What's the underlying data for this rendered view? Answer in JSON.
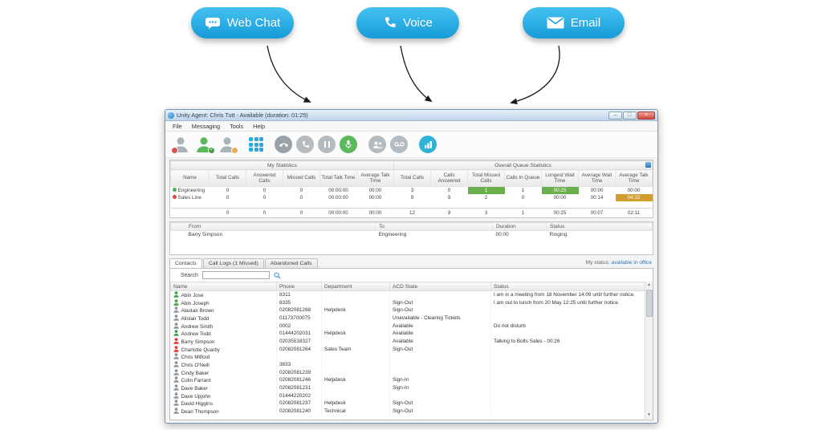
{
  "channels": {
    "webchat": {
      "label": "Web Chat"
    },
    "voice": {
      "label": "Voice"
    },
    "email": {
      "label": "Email"
    },
    "pill_color": "#29abe2"
  },
  "window": {
    "title": "Unity Agent: Chris Tutt - Available (duration: 01:25)",
    "controls": {
      "minimize": "–",
      "maximize": "□",
      "close": "×"
    },
    "menu": [
      "File",
      "Messaging",
      "Tools",
      "Help"
    ],
    "toolbar": {
      "icons": [
        {
          "name": "agent-unavailable-icon",
          "kind": "avatar",
          "color": "#a9b3ba",
          "badge": "#d9534f",
          "badge_glyph": "",
          "badge_side": "left"
        },
        {
          "name": "agent-available-icon",
          "kind": "avatar",
          "color": "#5cb85c",
          "badge": "#43a047",
          "badge_glyph": "✓",
          "badge_side": "right"
        },
        {
          "name": "agent-wrapup-icon",
          "kind": "avatar",
          "color": "#a9b3ba",
          "badge": "#f0ad4e",
          "badge_glyph": "",
          "badge_side": "right"
        },
        {
          "name": "dialpad-icon",
          "kind": "dialpad",
          "color": "#2aa9e0",
          "gap": true
        },
        {
          "name": "end-call-icon",
          "kind": "circle",
          "color": "#9aa2a9",
          "glyph": "phone-down",
          "gap": true
        },
        {
          "name": "answer-call-icon",
          "kind": "circle",
          "color": "#b4bbc1",
          "glyph": "phone"
        },
        {
          "name": "hold-call-icon",
          "kind": "circle",
          "color": "#b4bbc1",
          "glyph": "pause"
        },
        {
          "name": "record-call-icon",
          "kind": "circle",
          "color": "#5cb85c",
          "glyph": "mic"
        },
        {
          "name": "conference-icon",
          "kind": "circle",
          "color": "#b4bbc1",
          "glyph": "people",
          "gap": true
        },
        {
          "name": "voicemail-icon",
          "kind": "circle",
          "color": "#b4bbc1",
          "glyph": "voicemail"
        },
        {
          "name": "reports-icon",
          "kind": "circle",
          "color": "#2fb4d8",
          "glyph": "chart",
          "gap": true
        }
      ]
    },
    "stats": {
      "groups": [
        "My Statistics",
        "Overall Queue Statistics"
      ],
      "columns": [
        "Name",
        "Total Calls",
        "Answered Calls",
        "Missed Calls",
        "Total Talk Time",
        "Average Talk Time",
        "Total Calls",
        "Calls Answered",
        "Total Missed Calls",
        "Calls In Queue",
        "Longest Wait Time",
        "Average Wait Time",
        "Average Talk Time"
      ],
      "highlight_colors": {
        "green": "#6aaf4b",
        "amber": "#cf9e2e"
      },
      "rows": [
        {
          "name": "Engineering",
          "dot": "#4caf50",
          "values": [
            "0",
            "0",
            "0",
            "00:00:00",
            "00:00",
            "3",
            "0",
            "1",
            "1",
            "00:25",
            "00:00",
            "00:00"
          ],
          "highlights": {
            "7": "green",
            "9": "green"
          }
        },
        {
          "name": "Sales Line",
          "dot": "#e04438",
          "values": [
            "0",
            "0",
            "0",
            "00:00:00",
            "00:00",
            "9",
            "9",
            "2",
            "0",
            "00:00",
            "00:14",
            "04:22"
          ],
          "highlights": {
            "11": "amber"
          }
        }
      ],
      "totals": [
        "",
        "0",
        "0",
        "0",
        "00:00:00",
        "00:00",
        "12",
        "9",
        "3",
        "1",
        "00:25",
        "00:07",
        "02:11"
      ]
    },
    "calls": {
      "columns": [
        "From",
        "To",
        "Duration",
        "Status"
      ],
      "rows": [
        {
          "from": "Barry Simpson",
          "to": "Engineering",
          "duration": "00:00",
          "status": "Ringing"
        }
      ]
    },
    "tabs": [
      {
        "label": "Contacts",
        "active": true
      },
      {
        "label": "Call Logs (1 Missed)",
        "active": false
      },
      {
        "label": "Abandoned Calls",
        "active": false
      }
    ],
    "status_note": {
      "prefix": "My status: ",
      "value": "available in office"
    },
    "search": {
      "label": "Search",
      "value": ""
    },
    "contacts": {
      "columns": [
        "Name",
        "Phone",
        "Department",
        "ACD State",
        "Status"
      ],
      "icon_colors": {
        "green": "#43a047",
        "red": "#e53935",
        "gray": "#8d969e"
      },
      "rows": [
        {
          "name": "Abin Jose",
          "color": "green",
          "phone": "8311",
          "department": "",
          "acd": "",
          "status": "I am in a meeting from 18 November 14:09 until further notice."
        },
        {
          "name": "Abin Joseph",
          "color": "green",
          "phone": "8335",
          "department": "",
          "acd": "Sign-Out",
          "status": "I am out to lunch from 20 May 12:25 until further notice."
        },
        {
          "name": "Alastair Brown",
          "color": "gray",
          "phone": "02082081268",
          "department": "Helpdesk",
          "acd": "Sign-Out",
          "status": ""
        },
        {
          "name": "Alistair Todd",
          "color": "gray",
          "phone": "01173700075",
          "department": "",
          "acd": "Unavailable - Clearing Tickets",
          "status": ""
        },
        {
          "name": "Andrew Smith",
          "color": "gray",
          "phone": "0002",
          "department": "",
          "acd": "Available",
          "status": "Do not disturb"
        },
        {
          "name": "Andrew Todd",
          "color": "green",
          "phone": "01444202031",
          "department": "Helpdesk",
          "acd": "Available",
          "status": ""
        },
        {
          "name": "Barry Simpson",
          "color": "red",
          "phone": "02035518327",
          "department": "",
          "acd": "Available",
          "status": "Talking to Bolts Sales - 00:26"
        },
        {
          "name": "Charlotte Quartly",
          "color": "red",
          "phone": "02082081264",
          "department": "Sales Team",
          "acd": "Sign-Out",
          "status": ""
        },
        {
          "name": "Chris Milford",
          "color": "gray",
          "phone": "",
          "department": "",
          "acd": "",
          "status": ""
        },
        {
          "name": "Chris O'Neill",
          "color": "gray",
          "phone": "3833",
          "department": "",
          "acd": "",
          "status": ""
        },
        {
          "name": "Cindy Baker",
          "color": "gray",
          "phone": "02082081239",
          "department": "",
          "acd": "",
          "status": ""
        },
        {
          "name": "Colin Farrant",
          "color": "gray",
          "phone": "02082081246",
          "department": "Helpdesk",
          "acd": "Sign-In",
          "status": ""
        },
        {
          "name": "Dave Baker",
          "color": "gray",
          "phone": "02082081231",
          "department": "",
          "acd": "Sign-In",
          "status": ""
        },
        {
          "name": "Dave Upjohn",
          "color": "gray",
          "phone": "01444220202",
          "department": "",
          "acd": "",
          "status": ""
        },
        {
          "name": "David Higgins",
          "color": "gray",
          "phone": "02082081237",
          "department": "Helpdesk",
          "acd": "Sign-Out",
          "status": ""
        },
        {
          "name": "Dean Thompson",
          "color": "gray",
          "phone": "02082081240",
          "department": "Technical",
          "acd": "Sign-Out",
          "status": ""
        }
      ]
    },
    "scrollbar": {
      "up": "▲",
      "down": "▼"
    }
  }
}
